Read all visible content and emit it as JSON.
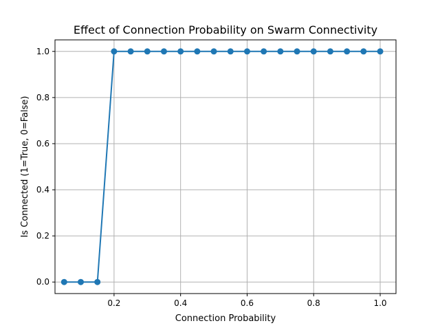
{
  "chart_data": {
    "type": "line",
    "title": "Effect of Connection Probability on Swarm Connectivity",
    "xlabel": "Connection Probability",
    "ylabel": "Is Connected (1=True, 0=False)",
    "xlim": [
      0.0225,
      1.0475
    ],
    "ylim": [
      -0.05,
      1.05
    ],
    "xticks": [
      0.2,
      0.4,
      0.6,
      0.8,
      1.0
    ],
    "xtick_labels": [
      "0.2",
      "0.4",
      "0.6",
      "0.8",
      "1.0"
    ],
    "yticks": [
      0.0,
      0.2,
      0.4,
      0.6,
      0.8,
      1.0
    ],
    "ytick_labels": [
      "0.0",
      "0.2",
      "0.4",
      "0.6",
      "0.8",
      "1.0"
    ],
    "grid": true,
    "series": [
      {
        "color": "#1f77b4",
        "marker": "circle",
        "x": [
          0.05,
          0.1,
          0.15,
          0.2,
          0.25,
          0.3,
          0.35,
          0.4,
          0.45,
          0.5,
          0.55,
          0.6,
          0.65,
          0.7,
          0.75,
          0.8,
          0.85,
          0.9,
          0.95,
          1.0
        ],
        "y": [
          0,
          0,
          0,
          1,
          1,
          1,
          1,
          1,
          1,
          1,
          1,
          1,
          1,
          1,
          1,
          1,
          1,
          1,
          1,
          1
        ]
      }
    ]
  }
}
